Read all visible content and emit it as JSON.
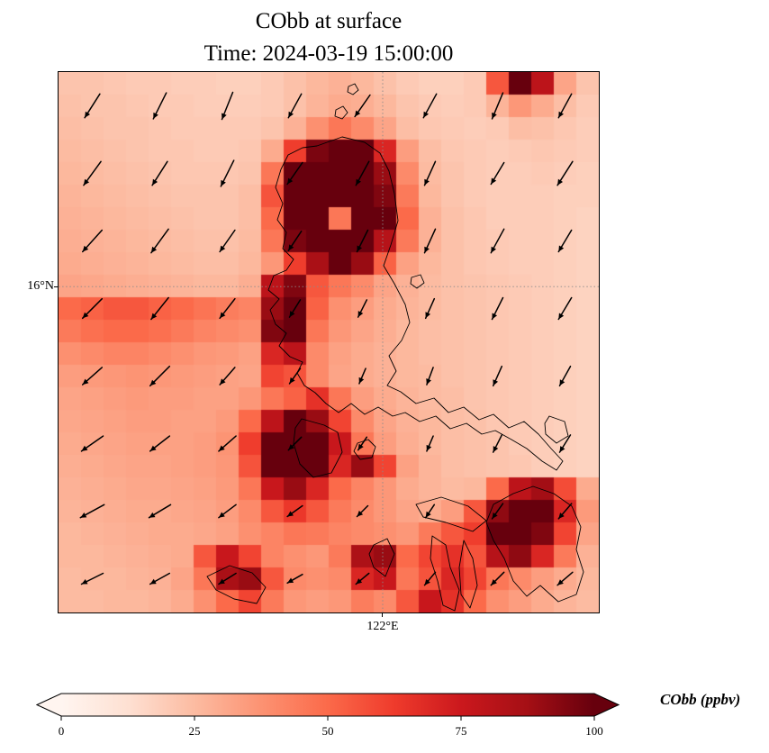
{
  "title": {
    "line1": "CObb at surface",
    "line2": "Time: 2024-03-19 15:00:00"
  },
  "axes": {
    "ytick": "16°N",
    "xtick": "122°E"
  },
  "colorbar": {
    "label": "CObb (ppbv)",
    "ticks": [
      "0",
      "25",
      "50",
      "75",
      "100"
    ]
  },
  "colors": {
    "background": "#ffffff",
    "coastline": "#000000",
    "arrow": "#000000",
    "gridline": "#8a8a8a",
    "cmap_stops": [
      [
        255,
        245,
        240
      ],
      [
        254,
        224,
        210
      ],
      [
        252,
        187,
        161
      ],
      [
        252,
        146,
        114
      ],
      [
        251,
        106,
        74
      ],
      [
        239,
        59,
        44
      ],
      [
        203,
        24,
        29
      ],
      [
        165,
        15,
        21
      ],
      [
        103,
        0,
        13
      ]
    ]
  },
  "chart_data": {
    "type": "heatmap",
    "title": "CObb at surface",
    "subtitle": "Time: 2024-03-19 15:00:00",
    "variable": "CObb",
    "units": "ppbv",
    "colormap": "Reds",
    "value_range": [
      0,
      100
    ],
    "colorbar_ticks": [
      0,
      25,
      50,
      75,
      100
    ],
    "colorbar_extend": "both",
    "visible_axis_ticks": {
      "lat": "16°N",
      "lon": "122°E"
    },
    "gridlines": {
      "lat_frac": 0.397,
      "lon_frac": 0.6
    },
    "grid_shape": [
      24,
      24
    ],
    "grid": [
      [
        22,
        22,
        21,
        20,
        20,
        19,
        19,
        18,
        18,
        20,
        23,
        26,
        28,
        26,
        23,
        20,
        18,
        18,
        20,
        55,
        100,
        80,
        32,
        22
      ],
      [
        23,
        22,
        22,
        21,
        20,
        20,
        19,
        19,
        19,
        20,
        23,
        27,
        30,
        29,
        26,
        22,
        20,
        19,
        20,
        27,
        36,
        30,
        24,
        20
      ],
      [
        24,
        23,
        22,
        22,
        21,
        20,
        20,
        20,
        20,
        22,
        28,
        38,
        46,
        40,
        32,
        24,
        21,
        20,
        19,
        20,
        24,
        23,
        21,
        19
      ],
      [
        25,
        24,
        23,
        22,
        21,
        21,
        20,
        20,
        21,
        30,
        62,
        96,
        110,
        104,
        70,
        34,
        24,
        21,
        20,
        19,
        20,
        21,
        20,
        19
      ],
      [
        26,
        25,
        24,
        23,
        22,
        21,
        21,
        21,
        22,
        46,
        102,
        110,
        110,
        110,
        90,
        40,
        25,
        22,
        20,
        19,
        19,
        20,
        19,
        18
      ],
      [
        27,
        26,
        25,
        24,
        23,
        22,
        22,
        22,
        24,
        56,
        110,
        110,
        108,
        110,
        95,
        45,
        26,
        22,
        20,
        19,
        19,
        19,
        18,
        18
      ],
      [
        28,
        27,
        26,
        25,
        24,
        23,
        22,
        22,
        24,
        50,
        110,
        110,
        46,
        110,
        100,
        50,
        28,
        23,
        21,
        19,
        19,
        19,
        18,
        17
      ],
      [
        29,
        28,
        27,
        26,
        25,
        24,
        23,
        23,
        25,
        46,
        96,
        110,
        100,
        110,
        82,
        45,
        28,
        23,
        21,
        20,
        19,
        19,
        18,
        17
      ],
      [
        30,
        29,
        28,
        27,
        26,
        25,
        24,
        24,
        26,
        36,
        62,
        86,
        104,
        90,
        52,
        33,
        26,
        23,
        21,
        20,
        19,
        19,
        18,
        17
      ],
      [
        32,
        31,
        30,
        29,
        28,
        27,
        26,
        26,
        29,
        80,
        95,
        55,
        46,
        40,
        32,
        28,
        25,
        23,
        22,
        21,
        20,
        19,
        18,
        17
      ],
      [
        50,
        52,
        55,
        55,
        52,
        50,
        47,
        44,
        42,
        90,
        100,
        52,
        38,
        34,
        30,
        27,
        25,
        23,
        22,
        21,
        20,
        19,
        18,
        17
      ],
      [
        45,
        48,
        50,
        50,
        48,
        45,
        42,
        40,
        38,
        95,
        105,
        46,
        36,
        32,
        29,
        26,
        24,
        23,
        22,
        21,
        20,
        19,
        18,
        17
      ],
      [
        38,
        40,
        42,
        42,
        40,
        38,
        36,
        35,
        33,
        70,
        80,
        40,
        33,
        30,
        28,
        26,
        24,
        23,
        22,
        21,
        20,
        19,
        18,
        17
      ],
      [
        34,
        35,
        36,
        37,
        36,
        35,
        34,
        33,
        32,
        60,
        56,
        40,
        32,
        30,
        28,
        26,
        25,
        23,
        22,
        21,
        20,
        19,
        18,
        17
      ],
      [
        32,
        33,
        34,
        35,
        34,
        34,
        33,
        33,
        36,
        46,
        52,
        66,
        46,
        34,
        30,
        27,
        25,
        24,
        22,
        21,
        20,
        19,
        18,
        17
      ],
      [
        31,
        32,
        33,
        34,
        34,
        33,
        33,
        35,
        50,
        80,
        100,
        90,
        60,
        40,
        32,
        28,
        26,
        24,
        23,
        21,
        20,
        19,
        18,
        17
      ],
      [
        30,
        31,
        32,
        33,
        33,
        33,
        34,
        37,
        62,
        105,
        110,
        110,
        76,
        46,
        34,
        29,
        26,
        24,
        23,
        22,
        20,
        19,
        18,
        17
      ],
      [
        29,
        30,
        31,
        32,
        32,
        33,
        34,
        36,
        56,
        100,
        110,
        105,
        70,
        90,
        60,
        33,
        27,
        24,
        23,
        22,
        21,
        19,
        18,
        17
      ],
      [
        28,
        29,
        30,
        31,
        31,
        32,
        33,
        35,
        46,
        76,
        90,
        70,
        50,
        42,
        36,
        30,
        27,
        25,
        26,
        50,
        80,
        88,
        58,
        30
      ],
      [
        27,
        28,
        29,
        30,
        30,
        31,
        32,
        34,
        40,
        55,
        64,
        55,
        45,
        40,
        36,
        32,
        30,
        34,
        55,
        92,
        110,
        104,
        70,
        35
      ],
      [
        26,
        27,
        28,
        29,
        30,
        30,
        31,
        33,
        38,
        42,
        46,
        45,
        42,
        40,
        38,
        36,
        45,
        55,
        62,
        110,
        110,
        95,
        60,
        32
      ],
      [
        26,
        26,
        27,
        28,
        29,
        30,
        55,
        76,
        60,
        42,
        38,
        36,
        45,
        85,
        90,
        50,
        60,
        66,
        56,
        82,
        92,
        70,
        45,
        28
      ],
      [
        25,
        26,
        26,
        27,
        28,
        32,
        46,
        86,
        90,
        55,
        40,
        38,
        40,
        70,
        76,
        46,
        56,
        70,
        60,
        46,
        40,
        34,
        30,
        26
      ],
      [
        25,
        25,
        26,
        26,
        27,
        30,
        38,
        50,
        60,
        45,
        36,
        34,
        36,
        44,
        40,
        55,
        76,
        66,
        50,
        38,
        34,
        30,
        27,
        25
      ]
    ],
    "wind": {
      "vectors": [
        [
          [
            -14,
            22
          ],
          [
            -12,
            24
          ],
          [
            -10,
            25
          ],
          [
            -12,
            22
          ],
          [
            -14,
            20
          ],
          [
            -12,
            22
          ],
          [
            -10,
            24
          ],
          [
            -12,
            22
          ]
        ],
        [
          [
            -16,
            22
          ],
          [
            -14,
            22
          ],
          [
            -12,
            24
          ],
          [
            -14,
            20
          ],
          [
            -12,
            22
          ],
          [
            -10,
            22
          ],
          [
            -12,
            20
          ],
          [
            -14,
            22
          ]
        ],
        [
          [
            -18,
            20
          ],
          [
            -16,
            22
          ],
          [
            -14,
            20
          ],
          [
            -12,
            18
          ],
          [
            -10,
            20
          ],
          [
            -10,
            22
          ],
          [
            -12,
            22
          ],
          [
            -12,
            20
          ]
        ],
        [
          [
            -18,
            18
          ],
          [
            -16,
            20
          ],
          [
            -14,
            18
          ],
          [
            -10,
            16
          ],
          [
            -8,
            16
          ],
          [
            -8,
            18
          ],
          [
            -10,
            20
          ],
          [
            -12,
            20
          ]
        ],
        [
          [
            -18,
            16
          ],
          [
            -18,
            18
          ],
          [
            -14,
            16
          ],
          [
            -10,
            14
          ],
          [
            -6,
            14
          ],
          [
            -6,
            16
          ],
          [
            -8,
            18
          ],
          [
            -10,
            18
          ]
        ],
        [
          [
            -20,
            14
          ],
          [
            -18,
            14
          ],
          [
            -16,
            14
          ],
          [
            -12,
            12
          ],
          [
            -8,
            12
          ],
          [
            -6,
            14
          ],
          [
            -8,
            16
          ],
          [
            -10,
            16
          ]
        ],
        [
          [
            -22,
            12
          ],
          [
            -20,
            12
          ],
          [
            -16,
            12
          ],
          [
            -14,
            10
          ],
          [
            -10,
            10
          ],
          [
            -8,
            12
          ],
          [
            -10,
            14
          ],
          [
            -12,
            14
          ]
        ],
        [
          [
            -20,
            10
          ],
          [
            -18,
            10
          ],
          [
            -16,
            10
          ],
          [
            -14,
            8
          ],
          [
            -12,
            10
          ],
          [
            -10,
            12
          ],
          [
            -12,
            12
          ],
          [
            -14,
            12
          ]
        ]
      ]
    }
  },
  "coastlines": [
    "M 287,82 L 315,72 L 340,78 L 357,90 L 367,110 L 373,135 L 377,165 L 369,192 L 361,215 L 373,235 L 385,258 L 390,278 L 381,298 L 367,315 L 375,332 L 365,348 L 380,355 L 397,368 L 417,362 L 433,378 L 450,372 L 467,386 L 483,380 L 500,395 L 517,388 L 533,402 L 547,418 L 560,432 L 553,442 L 537,432 L 520,418 L 503,408 L 485,398 L 470,402 L 453,390 L 435,396 L 419,382 L 401,388 L 385,378 L 371,382 L 355,372 L 340,380 L 325,368 L 311,378 L 297,368 L 285,356 L 273,348 L 265,334 L 271,322 L 257,316 L 245,304 L 253,290 L 241,280 L 235,264 L 245,252 L 233,242 L 239,226 L 253,220 L 261,208 L 249,196 L 253,178 L 243,164 L 249,146 L 241,128 L 247,108 L 255,92 L 271,84 Z",
    "M 270,385 L 295,392 L 310,400 L 315,422 L 303,445 L 283,450 L 268,435 L 261,412 L 263,395 Z",
    "M 332,412 L 344,408 L 352,416 L 348,428 L 335,430 L 328,421 Z",
    "M 545,382 L 562,388 L 566,404 L 553,412 L 541,402 L 540,390 Z",
    "M 397,480 L 425,472 L 455,482 L 475,498 L 460,510 L 430,500 L 405,494 Z",
    "M 483,480 L 505,468 L 527,460 L 550,468 L 570,482 L 580,505 L 575,530 L 583,555 L 575,580 L 555,588 L 535,570 L 520,582 L 505,565 L 495,540 L 483,520 L 475,500 Z",
    "M 165,560 L 190,548 L 215,556 L 230,572 L 220,590 L 195,585 L 175,575 Z",
    "M 350,525 L 365,518 L 373,535 L 363,560 L 350,550 L 345,535 Z",
    "M 415,515 L 430,525 L 435,550 L 445,575 L 440,598 L 427,592 L 421,565 L 413,540 Z",
    "M 450,520 L 460,540 L 465,570 L 457,595 L 447,580 L 445,550 Z",
    "M 308,42 L 316,38 L 321,45 L 315,52 L 307,49 Z",
    "M 322,16 L 329,13 L 333,20 L 327,25 L 321,22 Z",
    "M 392,228 L 402,225 L 406,234 L 398,240 L 391,235 Z"
  ]
}
